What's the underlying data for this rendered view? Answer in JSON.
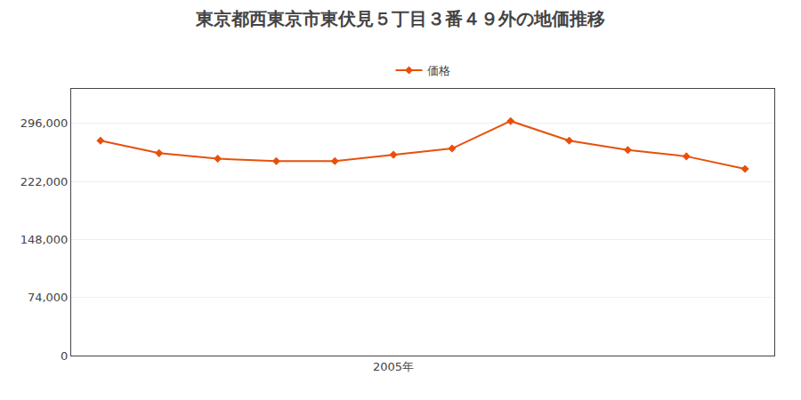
{
  "chart_data": {
    "type": "line",
    "title": "東京都西東京市東伏見５丁目３番４９外の地価推移",
    "x": [
      2000,
      2001,
      2002,
      2003,
      2004,
      2005,
      2006,
      2007,
      2008,
      2009,
      2010,
      2011
    ],
    "series": [
      {
        "name": "価格",
        "color": "#E8500A",
        "marker": "diamond",
        "line_style": "solid",
        "values": [
          274000,
          258000,
          251000,
          248000,
          248000,
          256000,
          264000,
          299000,
          274000,
          262000,
          254000,
          238000
        ]
      }
    ],
    "xlim": [
      1999.5,
      2011.5
    ],
    "xticks": [
      {
        "value": 2005,
        "label": "2005年"
      }
    ],
    "ylim": [
      0,
      340000
    ],
    "yticks": [
      0,
      {
        "value": 74000,
        "label": "74,000"
      },
      {
        "value": 148000,
        "label": "148,000"
      },
      {
        "value": 222000,
        "label": "222,000"
      },
      {
        "value": 296000,
        "label": "296,000"
      }
    ],
    "grid": "y",
    "legend": "top"
  }
}
